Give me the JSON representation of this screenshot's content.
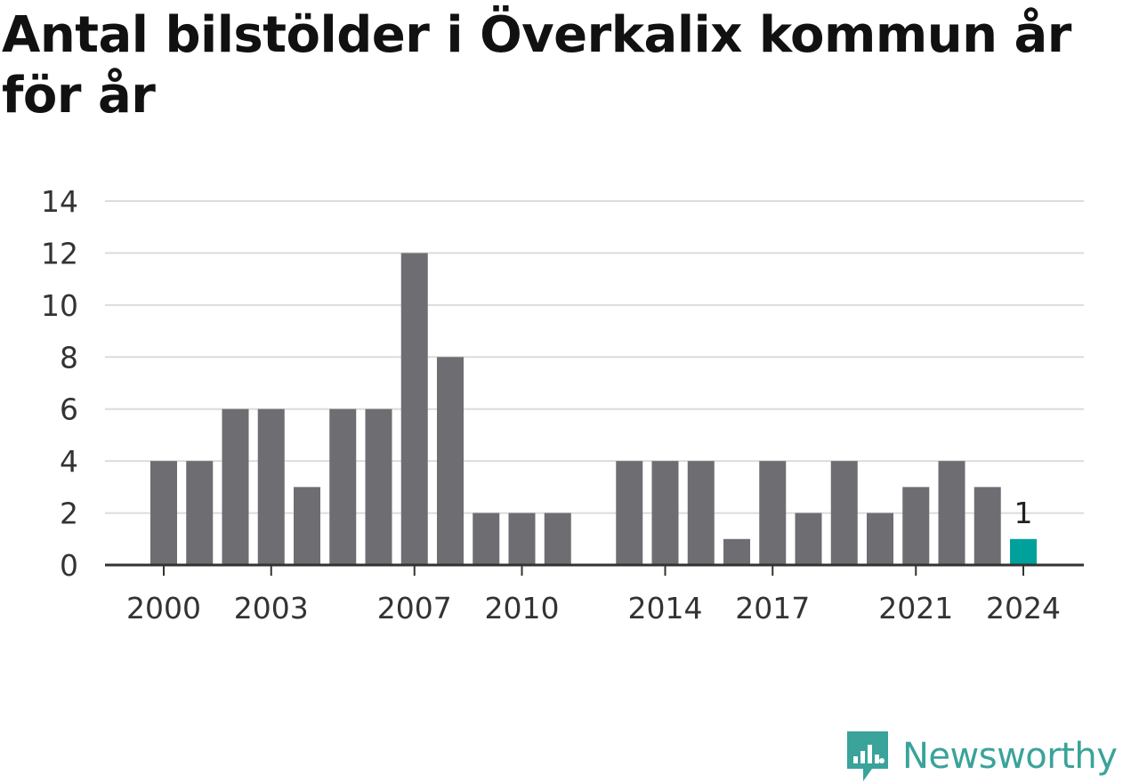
{
  "chart_data": {
    "type": "bar",
    "title": "Antal bilstölder i Överkalix kommun år för år",
    "xlabel": "",
    "ylabel": "",
    "categories": [
      "2000",
      "2001",
      "2002",
      "2003",
      "2004",
      "2005",
      "2006",
      "2007",
      "2008",
      "2009",
      "2010",
      "2011",
      "2012",
      "2013",
      "2014",
      "2015",
      "2016",
      "2017",
      "2018",
      "2019",
      "2020",
      "2021",
      "2022",
      "2023",
      "2024"
    ],
    "values": [
      4,
      4,
      6,
      6,
      3,
      6,
      6,
      12,
      8,
      2,
      2,
      2,
      0,
      4,
      4,
      4,
      1,
      4,
      2,
      4,
      2,
      3,
      4,
      3,
      1
    ],
    "x_tick_labels": [
      "2000",
      "2003",
      "2007",
      "2010",
      "2014",
      "2017",
      "2021",
      "2024"
    ],
    "y_ticks": [
      0,
      2,
      4,
      6,
      8,
      10,
      12,
      14
    ],
    "ylim": [
      0,
      14
    ],
    "grid": true,
    "legend": "none",
    "highlight": {
      "category": "2024",
      "label": "1",
      "color": "#00a19a"
    },
    "bar_color": "#6e6d72"
  },
  "branding": {
    "logo_text": "Newsworthy",
    "logo_icon": "newsworthy-bar-chart-icon",
    "logo_color": "#3aa39a"
  }
}
